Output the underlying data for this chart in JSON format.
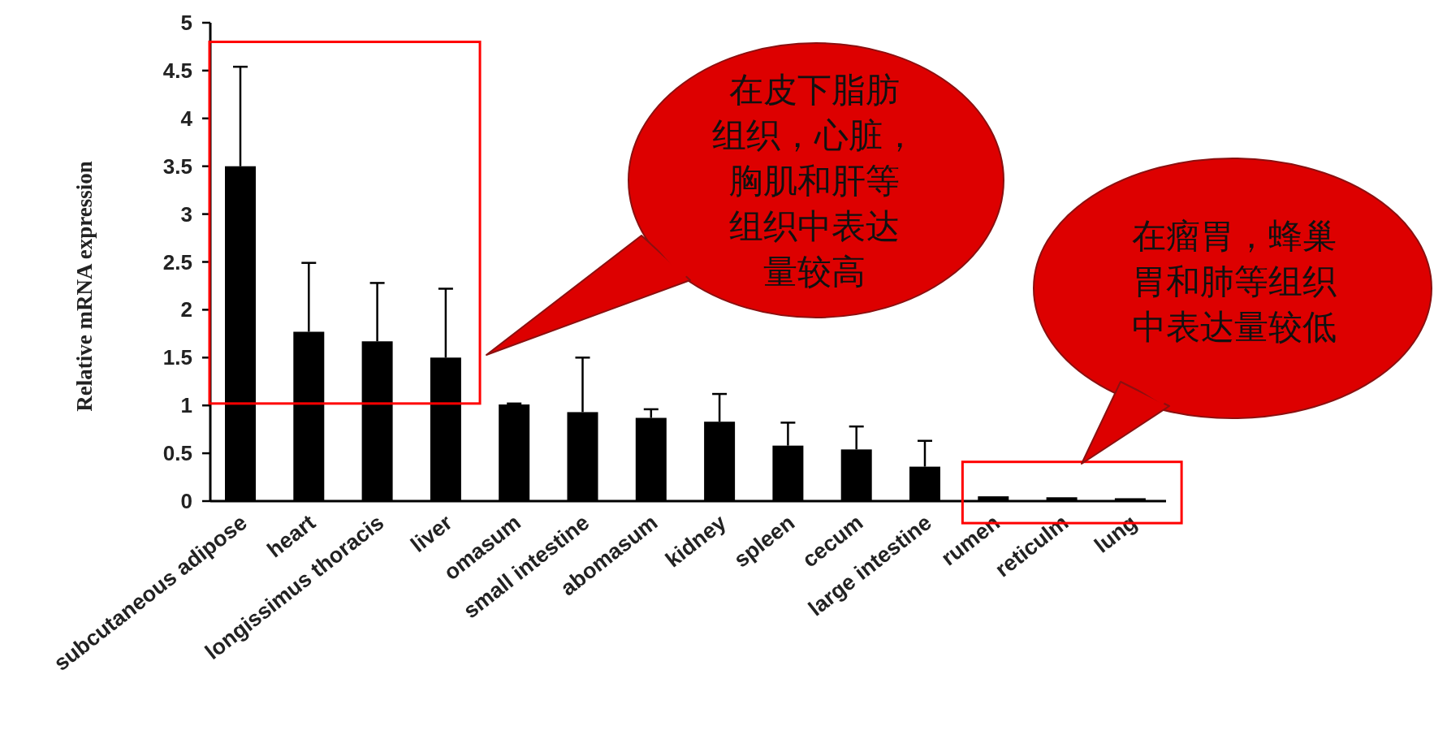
{
  "chart_data": {
    "type": "bar",
    "ylabel": "Relative mRNA expression",
    "categories": [
      "subcutaneous adipose",
      "heart",
      "longissimus thoracis",
      "liver",
      "omasum",
      "small intestine",
      "abomasum",
      "kidney",
      "spleen",
      "cecum",
      "large intestine",
      "rumen",
      "reticulm",
      "lung"
    ],
    "values": [
      3.5,
      1.77,
      1.67,
      1.5,
      1.01,
      0.93,
      0.87,
      0.83,
      0.58,
      0.54,
      0.36,
      0.05,
      0.04,
      0.03
    ],
    "errors": [
      [
        3.5,
        4.54
      ],
      [
        1.77,
        2.49
      ],
      [
        1.67,
        2.28
      ],
      [
        1.5,
        2.22
      ],
      [
        1.01,
        1.02
      ],
      [
        0.93,
        1.5
      ],
      [
        0.87,
        0.96
      ],
      [
        0.83,
        1.12
      ],
      [
        0.58,
        0.82
      ],
      [
        0.54,
        0.78
      ],
      [
        0.36,
        0.63
      ],
      null,
      null,
      null
    ],
    "color": "#000000",
    "ylim": [
      0,
      5
    ],
    "yticks": [
      0,
      0.5,
      1,
      1.5,
      2,
      2.5,
      3,
      3.5,
      4,
      4.5,
      5
    ],
    "grid": false,
    "annotations": [
      "在皮下脂肪组织，心脏，胸肌和肝等组织中表达量较高",
      "在瘤胃，蜂巢胃和肺等组织中表达量较低"
    ]
  }
}
